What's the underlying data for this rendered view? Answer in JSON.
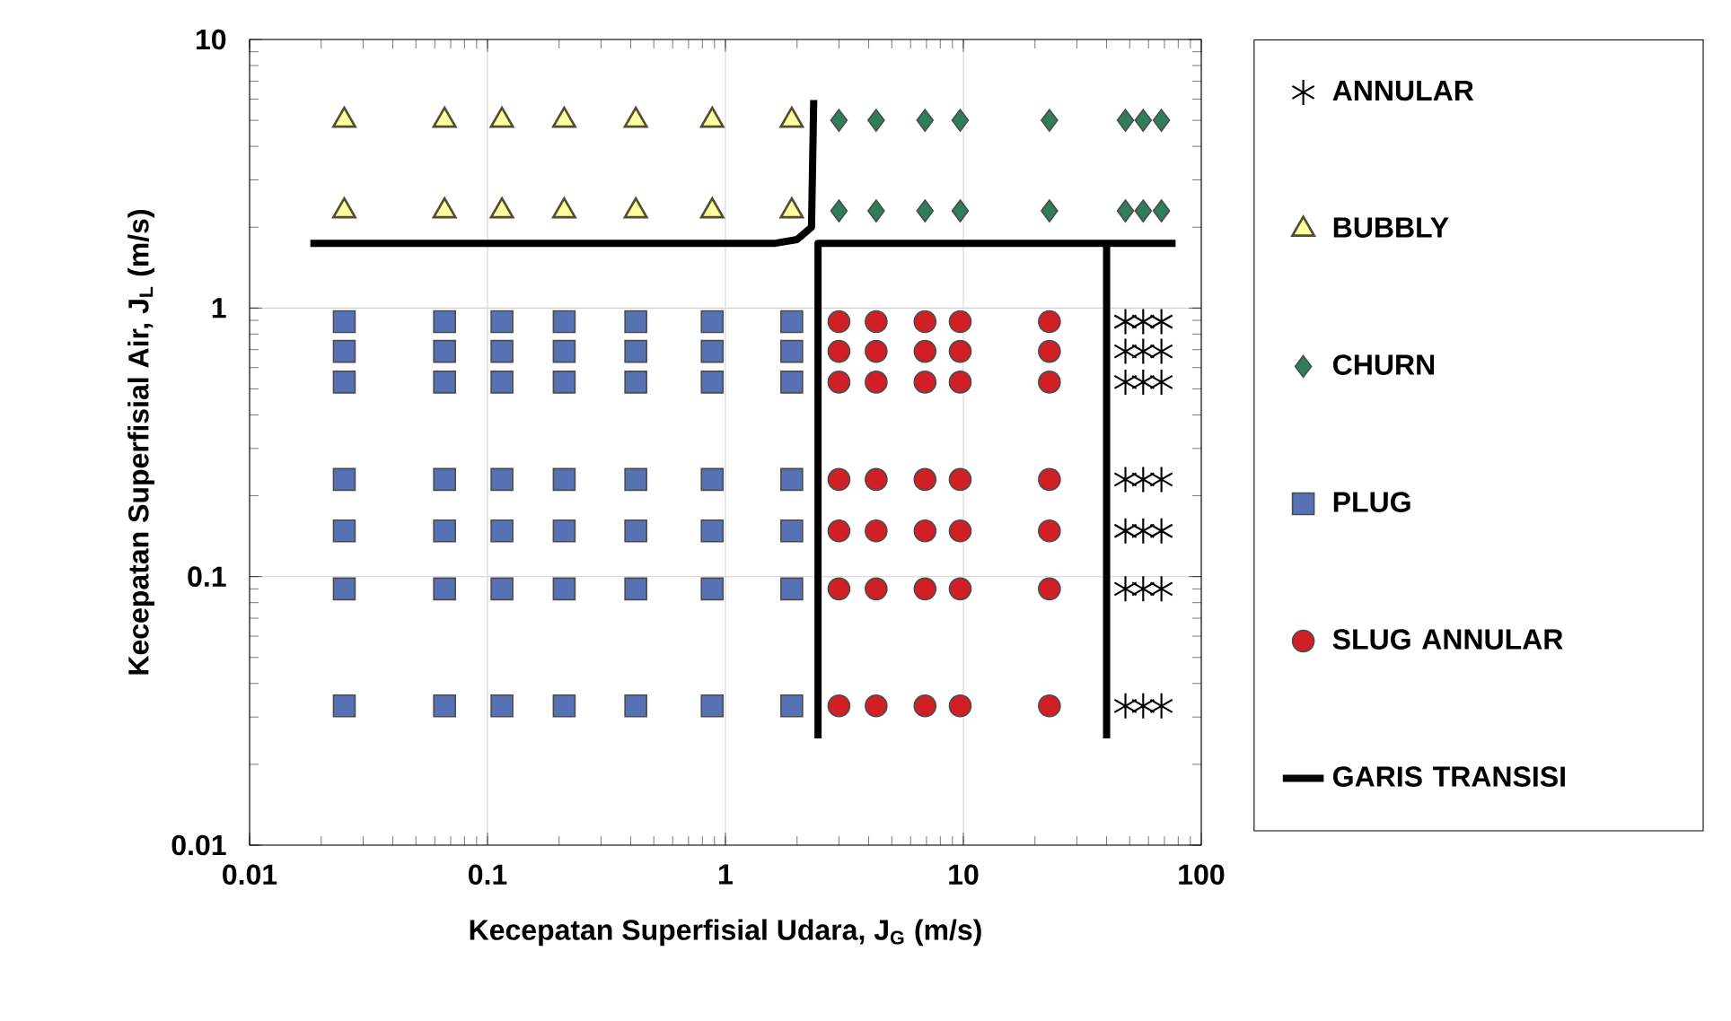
{
  "chart_data": {
    "type": "scatter",
    "xlabel": "Kecepatan Superfisial Udara, J$_{G}$ (m/s)",
    "ylabel": "Kecepatan Superfisial Air, J$_{L}$ (m/s)",
    "log": "xy",
    "grid": true,
    "legend": "right",
    "xlim": [
      0.01,
      100
    ],
    "ylim": [
      0.01,
      10
    ],
    "xticks": [
      0.01,
      0.1,
      1,
      10,
      100
    ],
    "yticks": [
      0.01,
      0.1,
      1,
      10
    ],
    "series": [
      {
        "name": "ANNULAR",
        "color": "#000000",
        "marker": "cross",
        "x": [
          48,
          57,
          68,
          48,
          57,
          68,
          48,
          57,
          68,
          48,
          57,
          68,
          48,
          57,
          68,
          48,
          57,
          68,
          48,
          57,
          68
        ],
        "values": [
          0.89,
          0.89,
          0.89,
          0.69,
          0.69,
          0.69,
          0.53,
          0.53,
          0.53,
          0.23,
          0.23,
          0.23,
          0.148,
          0.148,
          0.148,
          0.09,
          0.09,
          0.09,
          0.033,
          0.033,
          0.033
        ]
      },
      {
        "name": "BUBBLY",
        "color": "#ffffa0",
        "marker": "triangle",
        "x": [
          0.025,
          0.066,
          0.115,
          0.21,
          0.42,
          0.88,
          1.9,
          0.025,
          0.066,
          0.115,
          0.21,
          0.42,
          0.88,
          1.9
        ],
        "values": [
          5,
          5,
          5,
          5,
          5,
          5,
          5,
          2.3,
          2.3,
          2.3,
          2.3,
          2.3,
          2.3,
          2.3
        ]
      },
      {
        "name": "CHURN",
        "color": "#2e7d5b",
        "marker": "diamond",
        "x": [
          3,
          4.3,
          6.9,
          9.7,
          23,
          48,
          57,
          68,
          3,
          4.3,
          6.9,
          9.7,
          23,
          48,
          57,
          68
        ],
        "values": [
          5,
          5,
          5,
          5,
          5,
          5,
          5,
          5,
          2.3,
          2.3,
          2.3,
          2.3,
          2.3,
          2.3,
          2.3,
          2.3
        ]
      },
      {
        "name": "PLUG",
        "color": "#5672b4",
        "marker": "square",
        "x": [
          0.025,
          0.066,
          0.115,
          0.21,
          0.42,
          0.88,
          1.9,
          0.025,
          0.066,
          0.115,
          0.21,
          0.42,
          0.88,
          1.9,
          0.025,
          0.066,
          0.115,
          0.21,
          0.42,
          0.88,
          1.9,
          0.025,
          0.066,
          0.115,
          0.21,
          0.42,
          0.88,
          1.9,
          0.025,
          0.066,
          0.115,
          0.21,
          0.42,
          0.88,
          1.9,
          0.025,
          0.066,
          0.115,
          0.21,
          0.42,
          0.88,
          1.9,
          0.025,
          0.066,
          0.115,
          0.21,
          0.42,
          0.88,
          1.9
        ],
        "values": [
          0.89,
          0.89,
          0.89,
          0.89,
          0.89,
          0.89,
          0.89,
          0.69,
          0.69,
          0.69,
          0.69,
          0.69,
          0.69,
          0.69,
          0.53,
          0.53,
          0.53,
          0.53,
          0.53,
          0.53,
          0.53,
          0.23,
          0.23,
          0.23,
          0.23,
          0.23,
          0.23,
          0.23,
          0.148,
          0.148,
          0.148,
          0.148,
          0.148,
          0.148,
          0.148,
          0.09,
          0.09,
          0.09,
          0.09,
          0.09,
          0.09,
          0.09,
          0.033,
          0.033,
          0.033,
          0.033,
          0.033,
          0.033,
          0.033
        ]
      },
      {
        "name": "SLUG ANNULAR",
        "color": "#d01f25",
        "marker": "circle",
        "x": [
          3,
          4.3,
          6.9,
          9.7,
          23,
          3,
          4.3,
          6.9,
          9.7,
          23,
          3,
          4.3,
          6.9,
          9.7,
          23,
          3,
          4.3,
          6.9,
          9.7,
          23,
          3,
          4.3,
          6.9,
          9.7,
          23,
          3,
          4.3,
          6.9,
          9.7,
          23,
          3,
          4.3,
          6.9,
          9.7,
          23
        ],
        "values": [
          0.89,
          0.89,
          0.89,
          0.89,
          0.89,
          0.69,
          0.69,
          0.69,
          0.69,
          0.69,
          0.53,
          0.53,
          0.53,
          0.53,
          0.53,
          0.23,
          0.23,
          0.23,
          0.23,
          0.23,
          0.148,
          0.148,
          0.148,
          0.148,
          0.148,
          0.09,
          0.09,
          0.09,
          0.09,
          0.09,
          0.033,
          0.033,
          0.033,
          0.033,
          0.033
        ]
      },
      {
        "name": "GARIS TRANSISI",
        "type": "line",
        "color": "#000000",
        "marker": "none",
        "line_style": "solid",
        "x": [
          0.018,
          1.6,
          2.0,
          2.3,
          2.35,
          null,
          2.45,
          2.45,
          78,
          null,
          40,
          40
        ],
        "values": [
          1.74,
          1.74,
          1.8,
          2.0,
          5.95,
          null,
          0.025,
          1.74,
          1.74,
          null,
          1.74,
          0.025
        ]
      }
    ]
  }
}
